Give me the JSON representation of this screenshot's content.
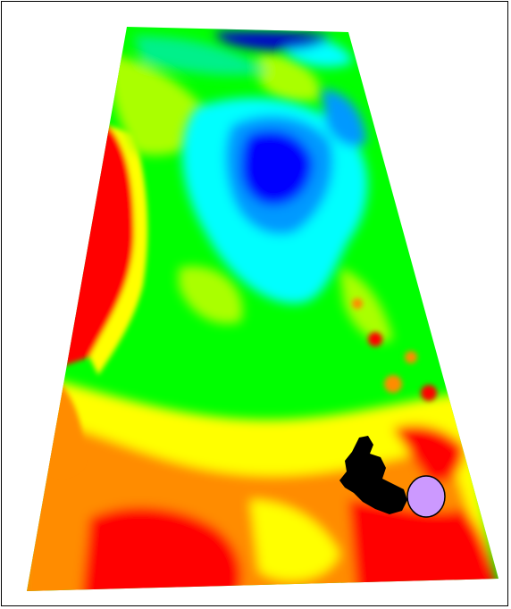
{
  "map": {
    "legend": "",
    "colors": {
      "red": "#ff0000",
      "orange": "#ff8c00",
      "yellow": "#ffff00",
      "yellow_green": "#aaff00",
      "green": "#00ff00",
      "teal_green": "#00f08a",
      "cyan": "#00ffff",
      "light_blue": "#0099ff",
      "blue": "#0000ff",
      "dark_blue": "#0000cc",
      "black_region": "#000000",
      "marker_fill": "#cc99ff"
    },
    "marker": {
      "shape": "circle"
    }
  }
}
